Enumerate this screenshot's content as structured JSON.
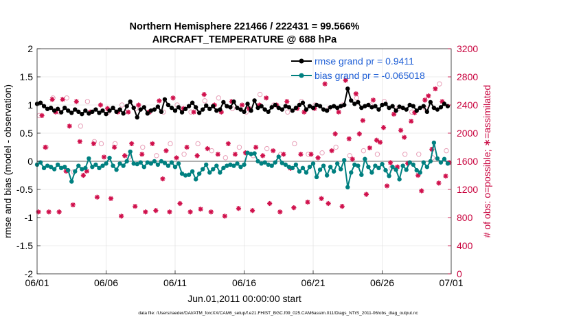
{
  "chart_data": {
    "type": "scatter",
    "title_line1": "Northern Hemisphere 221466 / 222431 = 99.566%",
    "title_line2": "AIRCRAFT_TEMPERATURE @ 688 hPa",
    "xlabel": "Jun.01,2011 00:00:00 start",
    "ylabel_left": "rmse and bias (model - observation)",
    "ylabel_right": "# of obs: o=possible; ∗=assimilated",
    "ylim_left": [
      -2,
      2
    ],
    "ylim_right": [
      0,
      3200
    ],
    "xlim": [
      0,
      30
    ],
    "x_ticks": [
      {
        "x": 0,
        "label": "06/01"
      },
      {
        "x": 5,
        "label": "06/06"
      },
      {
        "x": 10,
        "label": "06/11"
      },
      {
        "x": 15,
        "label": "06/16"
      },
      {
        "x": 20,
        "label": "06/21"
      },
      {
        "x": 25,
        "label": "06/26"
      },
      {
        "x": 30,
        "label": "07/01"
      }
    ],
    "y_left_ticks": [
      {
        "v": 2,
        "label": "2"
      },
      {
        "v": 1.5,
        "label": "1.5"
      },
      {
        "v": 1,
        "label": "1"
      },
      {
        "v": 0.5,
        "label": "0.5"
      },
      {
        "v": 0,
        "label": "0"
      },
      {
        "v": -0.5,
        "label": "-0.5"
      },
      {
        "v": -1,
        "label": "-1"
      },
      {
        "v": -1.5,
        "label": "-1.5"
      },
      {
        "v": -2,
        "label": "-2"
      }
    ],
    "y_right_ticks": [
      {
        "v": 3200,
        "label": "3200"
      },
      {
        "v": 2800,
        "label": "2800"
      },
      {
        "v": 2400,
        "label": "2400"
      },
      {
        "v": 2000,
        "label": "2000"
      },
      {
        "v": 1600,
        "label": "1600"
      },
      {
        "v": 1200,
        "label": "1200"
      },
      {
        "v": 800,
        "label": "800"
      },
      {
        "v": 400,
        "label": "400"
      },
      {
        "v": 0,
        "label": "0"
      }
    ],
    "grid": true,
    "zero_line": true,
    "legend": {
      "position": "top-right",
      "entries": [
        {
          "label": "rmse grand pr = 0.9411",
          "color": "#000000"
        },
        {
          "label": "bias grand pr = -0.065018",
          "color": "#008080"
        }
      ]
    },
    "series": [
      {
        "name": "rmse",
        "color": "#000000",
        "axis": "left",
        "x": [
          0,
          0.25,
          0.5,
          0.75,
          1,
          1.25,
          1.5,
          1.75,
          2,
          2.25,
          2.5,
          2.75,
          3,
          3.25,
          3.5,
          3.75,
          4,
          4.25,
          4.5,
          4.75,
          5,
          5.25,
          5.5,
          5.75,
          6,
          6.25,
          6.5,
          6.75,
          7,
          7.25,
          7.5,
          7.75,
          8,
          8.25,
          8.5,
          8.75,
          9,
          9.25,
          9.5,
          9.75,
          10,
          10.25,
          10.5,
          10.75,
          11,
          11.25,
          11.5,
          11.75,
          12,
          12.25,
          12.5,
          12.75,
          13,
          13.25,
          13.5,
          13.75,
          14,
          14.25,
          14.5,
          14.75,
          15,
          15.25,
          15.5,
          15.75,
          16,
          16.25,
          16.5,
          16.75,
          17,
          17.25,
          17.5,
          17.75,
          18,
          18.25,
          18.5,
          18.75,
          19,
          19.25,
          19.5,
          19.75,
          20,
          20.25,
          20.5,
          20.75,
          21,
          21.25,
          21.5,
          21.75,
          22,
          22.25,
          22.5,
          22.75,
          23,
          23.25,
          23.5,
          23.75,
          24,
          24.25,
          24.5,
          24.75,
          25,
          25.25,
          25.5,
          25.75,
          26,
          26.25,
          26.5,
          26.75,
          27,
          27.25,
          27.5,
          27.75,
          28,
          28.25,
          28.5,
          28.75,
          29,
          29.25,
          29.5,
          29.75
        ],
        "values": [
          1.02,
          1.04,
          0.98,
          0.93,
          0.95,
          0.9,
          0.93,
          0.87,
          0.95,
          0.9,
          0.86,
          0.92,
          0.88,
          0.84,
          0.9,
          0.85,
          0.88,
          0.92,
          0.86,
          0.9,
          0.84,
          0.9,
          0.95,
          0.88,
          0.92,
          0.85,
          0.98,
          1.06,
          0.95,
          0.78,
          0.92,
          0.96,
          0.85,
          0.9,
          0.92,
          0.97,
          0.88,
          1.1,
          1.0,
          0.95,
          0.9,
          0.96,
          0.87,
          0.93,
          0.98,
          1.04,
          0.96,
          0.86,
          0.92,
          0.99,
          0.93,
          0.98,
          0.9,
          0.92,
          1.05,
          0.98,
          0.96,
          1.06,
          0.95,
          0.92,
          0.88,
          1.02,
          0.9,
          1.08,
          0.95,
          0.98,
          0.92,
          0.88,
          0.96,
          1.0,
          0.95,
          0.92,
          0.98,
          0.96,
          0.9,
          0.95,
          1.0,
          1.04,
          0.92,
          0.98,
          0.95,
          1.0,
          0.98,
          0.92,
          0.9,
          0.96,
          0.98,
          0.95,
          0.98,
          1.0,
          1.29,
          1.08,
          1.02,
          1.05,
          0.95,
          0.98,
          1.0,
          0.96,
          0.98,
          0.92,
          1.0,
          1.02,
          0.95,
          0.98,
          0.9,
          0.97,
          0.95,
          0.92,
          1.0,
          0.98,
          0.9,
          0.95,
          0.98,
          0.88,
          1.05,
          0.95,
          0.92,
          0.96,
          1.02,
          0.98
        ]
      },
      {
        "name": "bias",
        "color": "#008080",
        "axis": "left",
        "x": [
          0,
          0.25,
          0.5,
          0.75,
          1,
          1.25,
          1.5,
          1.75,
          2,
          2.25,
          2.5,
          2.75,
          3,
          3.25,
          3.5,
          3.75,
          4,
          4.25,
          4.5,
          4.75,
          5,
          5.25,
          5.5,
          5.75,
          6,
          6.25,
          6.5,
          6.75,
          7,
          7.25,
          7.5,
          7.75,
          8,
          8.25,
          8.5,
          8.75,
          9,
          9.25,
          9.5,
          9.75,
          10,
          10.25,
          10.5,
          10.75,
          11,
          11.25,
          11.5,
          11.75,
          12,
          12.25,
          12.5,
          12.75,
          13,
          13.25,
          13.5,
          13.75,
          14,
          14.25,
          14.5,
          14.75,
          15,
          15.25,
          15.5,
          15.75,
          16,
          16.25,
          16.5,
          16.75,
          17,
          17.25,
          17.5,
          17.75,
          18,
          18.25,
          18.5,
          18.75,
          19,
          19.25,
          19.5,
          19.75,
          20,
          20.25,
          20.5,
          20.75,
          21,
          21.25,
          21.5,
          21.75,
          22,
          22.25,
          22.5,
          22.75,
          23,
          23.25,
          23.5,
          23.75,
          24,
          24.25,
          24.5,
          24.75,
          25,
          25.25,
          25.5,
          25.75,
          26,
          26.25,
          26.5,
          26.75,
          27,
          27.25,
          27.5,
          27.75,
          28,
          28.25,
          28.5,
          28.75,
          29,
          29.25,
          29.5,
          29.75
        ],
        "values": [
          -0.06,
          -0.02,
          -0.12,
          -0.08,
          -0.1,
          -0.14,
          -0.06,
          -0.12,
          -0.1,
          -0.16,
          -0.36,
          -0.18,
          -0.08,
          -0.14,
          -0.12,
          0.05,
          -0.1,
          -0.06,
          -0.12,
          -0.08,
          -0.04,
          0.06,
          -0.08,
          -0.15,
          -0.04,
          -0.08,
          0.0,
          0.17,
          -0.04,
          -0.05,
          -0.02,
          -0.1,
          -0.02,
          -0.04,
          0.0,
          -0.06,
          0.0,
          -0.03,
          -0.08,
          -0.02,
          -0.1,
          -0.04,
          -0.22,
          -0.25,
          -0.24,
          -0.18,
          -0.32,
          -0.22,
          -0.14,
          -0.06,
          -0.2,
          -0.14,
          -0.08,
          -0.2,
          -0.12,
          -0.08,
          -0.06,
          -0.08,
          -0.04,
          -0.1,
          -0.06,
          0.15,
          0.13,
          0.14,
          0.0,
          -0.04,
          -0.02,
          -0.06,
          -0.08,
          -0.02,
          0.08,
          -0.03,
          -0.06,
          -0.1,
          -0.12,
          -0.06,
          -0.18,
          -0.12,
          -0.2,
          -0.1,
          -0.04,
          -0.28,
          -0.15,
          -0.08,
          -0.25,
          -0.1,
          -0.18,
          -0.04,
          -0.14,
          0.02,
          -0.46,
          -0.2,
          -0.06,
          -0.08,
          -0.24,
          0.04,
          -0.1,
          -0.2,
          -0.08,
          -0.12,
          -0.05,
          -0.16,
          -0.26,
          -0.1,
          -0.15,
          -0.32,
          -0.08,
          -0.15,
          -0.02,
          -0.06,
          -0.16,
          -0.2,
          -0.02,
          -0.1,
          0.0,
          0.33,
          0.05,
          -0.02,
          0.04,
          -0.04
        ]
      },
      {
        "name": "possible",
        "color": "#e8a0b8",
        "axis": "right",
        "marker": "o",
        "x": [
          0.15,
          0.65,
          1.15,
          1.65,
          2.15,
          2.65,
          3.15,
          3.65,
          4.15,
          4.65,
          5.15,
          5.65,
          6.15,
          6.65,
          7.15,
          7.65,
          8.15,
          8.65,
          9.15,
          9.65,
          10.15,
          10.65,
          11.15,
          11.65,
          12.15,
          12.65,
          13.15,
          13.65,
          14.15,
          14.65,
          15.15,
          15.65,
          16.15,
          16.65,
          17.15,
          17.65,
          18.15,
          18.65,
          19.15,
          19.65,
          20.15,
          20.65,
          21.15,
          21.65,
          22.15,
          22.65,
          23.15,
          23.65,
          24.15,
          24.65,
          25.15,
          25.65,
          26.15,
          26.65,
          27.15,
          27.65,
          28.15,
          28.65,
          29.15,
          29.65
        ],
        "values": [
          2250,
          1800,
          2500,
          2300,
          2500,
          1450,
          2100,
          2450,
          1880,
          1850,
          2300,
          1850,
          2400,
          1660,
          2350,
          1800,
          2300,
          1680,
          2300,
          1850,
          2400,
          1700,
          2300,
          1850,
          2460,
          1750,
          2500,
          1650,
          2350,
          1800,
          2300,
          1680,
          2550,
          1780,
          2400,
          1700,
          2300,
          1850,
          2450,
          1700,
          2400,
          1720,
          2350,
          1800,
          2400,
          1680,
          2500,
          1750,
          2400,
          1700,
          2450,
          1500,
          2350,
          1700,
          2300,
          1700,
          2350,
          1650,
          2700,
          1750
        ]
      },
      {
        "name": "assimilated",
        "color": "#d0104c",
        "axis": "right",
        "marker": "*",
        "x": [
          0.1,
          0.35,
          0.6,
          0.85,
          1.1,
          1.35,
          1.6,
          1.85,
          2.1,
          2.35,
          2.6,
          2.85,
          3.1,
          3.35,
          3.6,
          3.85,
          4.1,
          4.35,
          4.6,
          4.85,
          5.1,
          5.35,
          5.6,
          5.85,
          6.1,
          6.35,
          6.6,
          6.85,
          7.1,
          7.35,
          7.6,
          7.85,
          8.1,
          8.35,
          8.6,
          8.85,
          9.1,
          9.35,
          9.6,
          9.85,
          10.1,
          10.35,
          10.6,
          10.85,
          11.1,
          11.35,
          11.6,
          11.85,
          12.1,
          12.35,
          12.6,
          12.85,
          13.1,
          13.35,
          13.6,
          13.85,
          14.1,
          14.35,
          14.6,
          14.85,
          15.1,
          15.35,
          15.6,
          15.85,
          16.1,
          16.35,
          16.6,
          16.85,
          17.1,
          17.35,
          17.6,
          17.85,
          18.1,
          18.35,
          18.6,
          18.85,
          19.1,
          19.35,
          19.6,
          19.85,
          20.1,
          20.35,
          20.6,
          20.85,
          21.1,
          21.35,
          21.6,
          21.85,
          22.1,
          22.35,
          22.6,
          22.85,
          23.1,
          23.35,
          23.6,
          23.85,
          24.1,
          24.35,
          24.6,
          24.85,
          25.1,
          25.35,
          25.6,
          25.85,
          26.1,
          26.35,
          26.6,
          26.85,
          27.1,
          27.35,
          27.6,
          27.85,
          28.1,
          28.35,
          28.6,
          28.85,
          29.1,
          29.35,
          29.6,
          29.85
        ],
        "values": [
          880,
          2250,
          1800,
          880,
          2480,
          2300,
          880,
          2480,
          1460,
          2100,
          980,
          2450,
          1880,
          1400,
          1460,
          2300,
          1850,
          1090,
          2400,
          1660,
          2350,
          1070,
          1800,
          2300,
          820,
          1680,
          2300,
          1850,
          960,
          2400,
          1700,
          880,
          2300,
          1850,
          900,
          2460,
          1350,
          1750,
          880,
          2500,
          1650,
          1000,
          2350,
          1800,
          880,
          2300,
          1680,
          920,
          2550,
          1780,
          880,
          2400,
          1700,
          2300,
          820,
          1850,
          2450,
          1700,
          930,
          2400,
          1720,
          2350,
          900,
          1800,
          2400,
          1680,
          2500,
          1000,
          1750,
          2400,
          880,
          1700,
          2450,
          1500,
          940,
          2350,
          1700,
          2300,
          1020,
          1700,
          2350,
          1650,
          1070,
          2700,
          1000,
          1750,
          1990,
          2300,
          960,
          2750,
          1920,
          1630,
          2560,
          1990,
          2180,
          1130,
          1790,
          2470,
          1900,
          1870,
          2080,
          1250,
          1580,
          2270,
          1520,
          2040,
          1940,
          1570,
          2170,
          2290,
          1400,
          1180,
          2470,
          2530,
          1770,
          2630,
          1290,
          2450,
          1390,
          1580
        ]
      }
    ]
  },
  "footer": {
    "datafile": "data file: /Users/raeder/DAI/ATM_forcXX/CAM6_setup/f.e21.FHIST_BGC.f09_025.CAM6assim.011/Diags_NTrS_2011-06/obs_diag_output.nc"
  }
}
